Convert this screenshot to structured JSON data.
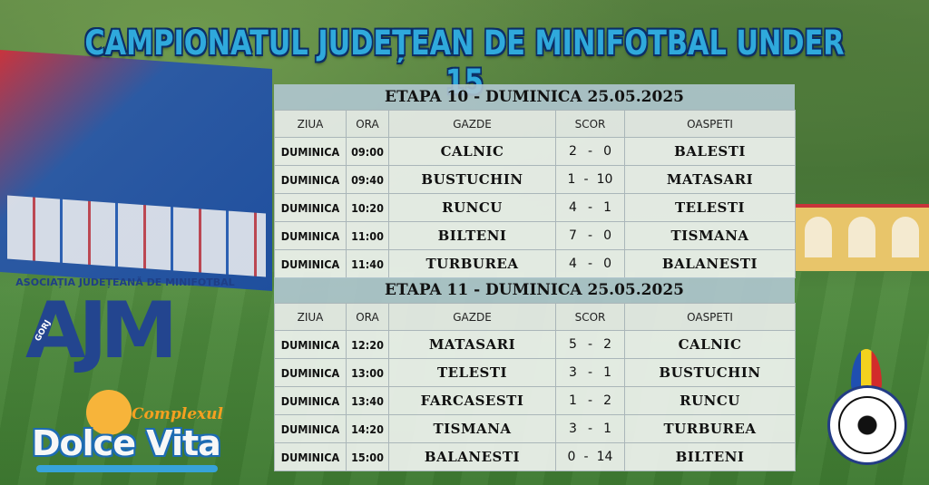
{
  "title": "CAMPIONATUL JUDEȚEAN DE MINIFOTBAL UNDER 15",
  "columns": {
    "ziua": "ZIUA",
    "ora": "ORA",
    "gazde": "GAZDE",
    "scor": "SCOR",
    "oaspeti": "OASPETI"
  },
  "etapa10": {
    "heading": "ETAPA 10 - DUMINICA 25.05.2025",
    "matches": [
      {
        "ziua": "DUMINICA",
        "ora": "09:00",
        "gazde": "CALNIC",
        "g": "2",
        "sep": "-",
        "o": "0",
        "oaspeti": "BALESTI"
      },
      {
        "ziua": "DUMINICA",
        "ora": "09:40",
        "gazde": "BUSTUCHIN",
        "g": "1",
        "sep": "-",
        "o": "10",
        "oaspeti": "MATASARI"
      },
      {
        "ziua": "DUMINICA",
        "ora": "10:20",
        "gazde": "RUNCU",
        "g": "4",
        "sep": "-",
        "o": "1",
        "oaspeti": "TELESTI"
      },
      {
        "ziua": "DUMINICA",
        "ora": "11:00",
        "gazde": "BILTENI",
        "g": "7",
        "sep": "-",
        "o": "0",
        "oaspeti": "TISMANA"
      },
      {
        "ziua": "DUMINICA",
        "ora": "11:40",
        "gazde": "TURBUREA",
        "g": "4",
        "sep": "-",
        "o": "0",
        "oaspeti": "BALANESTI"
      }
    ]
  },
  "etapa11": {
    "heading": "ETAPA 11 - DUMINICA 25.05.2025",
    "matches": [
      {
        "ziua": "DUMINICA",
        "ora": "12:20",
        "gazde": "MATASARI",
        "g": "5",
        "sep": "-",
        "o": "2",
        "oaspeti": "CALNIC"
      },
      {
        "ziua": "DUMINICA",
        "ora": "13:00",
        "gazde": "TELESTI",
        "g": "3",
        "sep": "-",
        "o": "1",
        "oaspeti": "BUSTUCHIN"
      },
      {
        "ziua": "DUMINICA",
        "ora": "13:40",
        "gazde": "FARCASESTI",
        "g": "1",
        "sep": "-",
        "o": "2",
        "oaspeti": "RUNCU"
      },
      {
        "ziua": "DUMINICA",
        "ora": "14:20",
        "gazde": "TISMANA",
        "g": "3",
        "sep": "-",
        "o": "1",
        "oaspeti": "TURBUREA"
      },
      {
        "ziua": "DUMINICA",
        "ora": "15:00",
        "gazde": "BALANESTI",
        "g": "0",
        "sep": "-",
        "o": "14",
        "oaspeti": "BILTENI"
      }
    ]
  },
  "logos": {
    "ajm_caption": "ASOCIAȚIA JUDEȚEANĂ DE MINIFOTBAL",
    "ajm_letters": "AJM",
    "ajm_county": "GORJ",
    "dolce_sub": "Complexul",
    "dolce_word": "Dolce Vita"
  }
}
